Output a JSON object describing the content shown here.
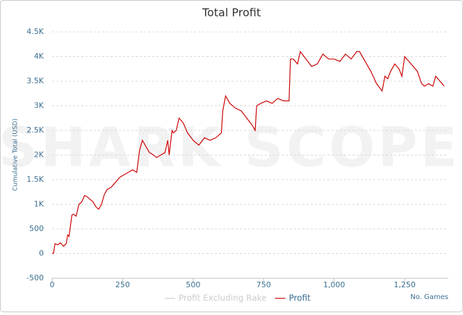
{
  "chart_data": {
    "type": "line",
    "title": "Total Profit",
    "watermark": "SHARK SCOPE",
    "xlabel": "No. Games",
    "ylabel": "Cumulative Total (USD)",
    "xlim": [
      0,
      1405
    ],
    "ylim": [
      -500,
      4500
    ],
    "xticks": [
      0,
      250,
      500,
      750,
      {
        "value": 1000,
        "label": "1,000"
      },
      {
        "value": 1250,
        "label": "1,250"
      }
    ],
    "yticks": [
      -500,
      0,
      500,
      {
        "value": 1000,
        "label": "1K"
      },
      {
        "value": 1500,
        "label": "1.5K"
      },
      {
        "value": 2000,
        "label": "2K"
      },
      {
        "value": 2500,
        "label": "2.5K"
      },
      {
        "value": 3000,
        "label": "3K"
      },
      {
        "value": 3500,
        "label": "3.5K"
      },
      {
        "value": 4000,
        "label": "4K"
      },
      {
        "value": 4500,
        "label": "4.5K"
      }
    ],
    "grid": true,
    "legend": "bottom",
    "x": [
      0,
      5,
      10,
      20,
      30,
      40,
      50,
      55,
      60,
      70,
      75,
      85,
      95,
      105,
      115,
      125,
      135,
      145,
      155,
      165,
      175,
      185,
      195,
      210,
      225,
      240,
      255,
      270,
      285,
      300,
      310,
      320,
      330,
      345,
      360,
      370,
      385,
      400,
      410,
      415,
      425,
      430,
      440,
      450,
      465,
      480,
      500,
      520,
      540,
      560,
      580,
      600,
      605,
      615,
      630,
      650,
      670,
      690,
      710,
      720,
      725,
      740,
      760,
      780,
      800,
      820,
      840,
      845,
      855,
      870,
      880,
      900,
      920,
      940,
      960,
      980,
      1000,
      1020,
      1040,
      1060,
      1080,
      1090,
      1110,
      1130,
      1150,
      1170,
      1180,
      1190,
      1200,
      1215,
      1230,
      1240,
      1250,
      1265,
      1280,
      1295,
      1310,
      1320,
      1335,
      1350,
      1360,
      1375,
      1390
    ],
    "series": [
      {
        "name": "Profit Excluding Rake",
        "color": "#cccccc",
        "visible": false
      },
      {
        "name": "Profit",
        "color": "#cc0000",
        "values": [
          0,
          10,
          200,
          180,
          220,
          150,
          200,
          380,
          350,
          780,
          800,
          760,
          1000,
          1050,
          1180,
          1150,
          1100,
          1050,
          950,
          900,
          1000,
          1200,
          1300,
          1350,
          1450,
          1550,
          1600,
          1650,
          1700,
          1650,
          2100,
          2300,
          2200,
          2050,
          2000,
          1950,
          2000,
          2050,
          2300,
          2000,
          2500,
          2450,
          2500,
          2750,
          2650,
          2450,
          2300,
          2200,
          2350,
          2300,
          2350,
          2450,
          2900,
          3200,
          3050,
          2950,
          2900,
          2750,
          2600,
          2500,
          3000,
          3050,
          3100,
          3050,
          3150,
          3100,
          3100,
          3950,
          3950,
          3850,
          4100,
          3950,
          3800,
          3850,
          4050,
          3950,
          3950,
          3900,
          4050,
          3950,
          4100,
          4100,
          3900,
          3700,
          3450,
          3300,
          3600,
          3550,
          3700,
          3850,
          3750,
          3600,
          4000,
          3900,
          3800,
          3700,
          3450,
          3400,
          3450,
          3400,
          3600,
          3500,
          3400
        ]
      }
    ]
  }
}
